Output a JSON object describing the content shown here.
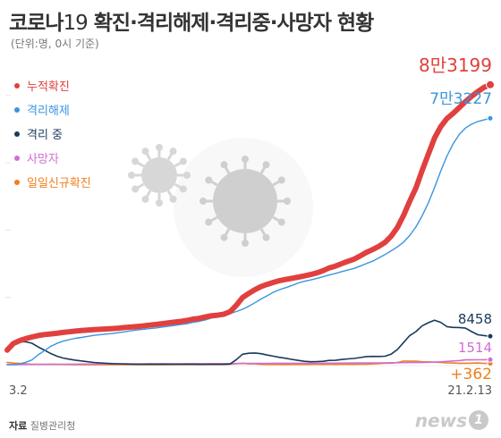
{
  "header": {
    "title_prefix": "코로나",
    "title_number": "19",
    "title_rest": " 확진·격리해제·격리중·사망자 현황",
    "subtitle": "(단위:명, 0시 기준)"
  },
  "footer": {
    "source_label": "자료",
    "source_value": "질병관리청",
    "watermark": "news",
    "watermark_badge": "1"
  },
  "chart_data": {
    "type": "line",
    "title": "코로나19 확진·격리해제·격리중·사망자 현황",
    "subtitle": "(단위:명, 0시 기준)",
    "x_start_label": "3.2",
    "x_end_label": "21.2.13",
    "ylim": [
      0,
      85000
    ],
    "y_ticks": [
      0,
      20000,
      40000,
      60000,
      80000
    ],
    "grid": false,
    "legend_position": "top-left",
    "series": [
      {
        "name": "누적확진",
        "color": "#e0403e",
        "label": "8만3199",
        "values": [
          4335,
          6284,
          7134,
          7755,
          8236,
          8652,
          8961,
          9137,
          9332,
          9583,
          9786,
          9976,
          10156,
          10284,
          10423,
          10512,
          10613,
          10727,
          10874,
          11050,
          11190,
          11344,
          11541,
          11776,
          11947,
          12198,
          12438,
          12653,
          12850,
          13137,
          13551,
          13771,
          14175,
          14562,
          14714,
          15039,
          15761,
          17665,
          19947,
          21177,
          22285,
          23216,
          23889,
          24476,
          24988,
          25333,
          25698,
          26043,
          26385,
          26807,
          27284,
          27942,
          28769,
          29311,
          30017,
          30733,
          31353,
          32318,
          33375,
          34201,
          35163,
          36332,
          38161,
          40786,
          44364,
          48570,
          52550,
          57680,
          62593,
          67358,
          70728,
          73115,
          74692,
          76429,
          78205,
          79762,
          81185,
          82434,
          83199
        ]
      },
      {
        "name": "격리해제",
        "color": "#3a94e0",
        "label": "7만3227",
        "values": [
          30,
          41,
          247,
          714,
          1401,
          2909,
          4144,
          5408,
          6325,
          6973,
          7447,
          7828,
          8114,
          8411,
          8717,
          8922,
          9122,
          9283,
          9538,
          9782,
          10066,
          10362,
          10531,
          10718,
          10930,
          11172,
          11422,
          11684,
          11914,
          12178,
          12583,
          12879,
          13280,
          13901,
          14180,
          14611,
          15198,
          15803,
          16481,
          17385,
          18417,
          19514,
          20544,
          21553,
          22320,
          22901,
          23574,
          24284,
          24786,
          25183,
          25650,
          26137,
          26668,
          27112,
          27643,
          28140,
          28616,
          29296,
          30029,
          30769,
          31729,
          32735,
          33840,
          35004,
          36420,
          38410,
          40935,
          44210,
          48105,
          52620,
          57505,
          61962,
          65635,
          68458,
          70347,
          71489,
          72269,
          72755,
          73227
        ]
      },
      {
        "name": "격리 중",
        "color": "#1a3a5c",
        "label": "8458",
        "values": [
          4275,
          6209,
          6854,
          6788,
          6386,
          5296,
          4354,
          3357,
          2538,
          1991,
          1649,
          1356,
          1103,
          883,
          675,
          529,
          413,
          326,
          254,
          207,
          163,
          120,
          124,
          175,
          168,
          159,
          140,
          132,
          125,
          165,
          155,
          118,
          132,
          127,
          126,
          130,
          214,
          1527,
          3107,
          3404,
          3481,
          3270,
          2876,
          2521,
          2183,
          1905,
          1578,
          1263,
          1013,
          869,
          923,
          1012,
          1272,
          1313,
          1531,
          1732,
          1860,
          2126,
          2430,
          2477,
          2437,
          2527,
          3135,
          4520,
          6598,
          8663,
          9828,
          11537,
          12491,
          13233,
          12593,
          11305,
          11068,
          11054,
          10874,
          9831,
          8904,
          8658,
          8458
        ]
      },
      {
        "name": "사망자",
        "color": "#d06ed2",
        "label": "1514",
        "values": [
          22,
          34,
          54,
          67,
          77,
          86,
          94,
          108,
          121,
          139,
          152,
          160,
          174,
          192,
          208,
          218,
          228,
          238,
          250,
          255,
          256,
          263,
          263,
          269,
          277,
          282,
          280,
          282,
          289,
          294,
          297,
          300,
          299,
          308,
          323,
          326,
          330,
          335,
          344,
          359,
          368,
          377,
          398,
          416,
          418,
          415,
          422,
          428,
          433,
          435,
          439,
          442,
          447,
          461,
          475,
          485,
          505,
          526,
          526,
          523,
          539,
          554,
          572,
          594,
          612,
          628,
          637,
          649,
          707,
          780,
          843,
          986,
          1123,
          1217,
          1432,
          1440,
          1463,
          1481,
          1514
        ]
      },
      {
        "name": "일일신규확진",
        "color": "#f07f1c",
        "label": "+362",
        "values": [
          686,
          476,
          367,
          242,
          107,
          125,
          74,
          152,
          78,
          67,
          63,
          27,
          39,
          35,
          26,
          22,
          32,
          9,
          15,
          45,
          51,
          33,
          39,
          27,
          34,
          29,
          34,
          44,
          57,
          51,
          59,
          62,
          51,
          67,
          60,
          49,
          126,
          279,
          441,
          238,
          229,
          119,
          75,
          77,
          86,
          58,
          113,
          40,
          97,
          77,
          125,
          76,
          125,
          77,
          114,
          103,
          103,
          155,
          163,
          230,
          330,
          440,
          451,
          628,
          1078,
          1029,
          1046,
          869,
          837,
          743,
          657,
          541,
          513,
          433,
          431,
          451,
          496,
          403,
          362
        ]
      }
    ]
  }
}
